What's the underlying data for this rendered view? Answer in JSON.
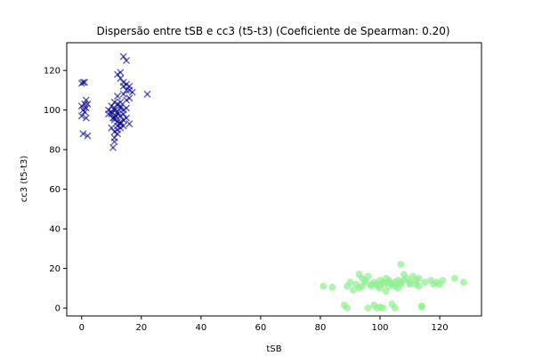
{
  "chart_data": {
    "type": "scatter",
    "title": "Dispersão entre tSB e cc3 (t5-t3) (Coeficiente de Spearman: 0.20)",
    "xlabel": "tSB",
    "ylabel": "cc3 (t5-t3)",
    "xlim": [
      -5,
      134
    ],
    "ylim": [
      -4,
      134
    ],
    "xticks": [
      0,
      20,
      40,
      60,
      80,
      100,
      120
    ],
    "yticks": [
      0,
      20,
      40,
      60,
      80,
      100,
      120
    ],
    "grid": false,
    "series": [
      {
        "marker": "x",
        "color": "#00008b",
        "points": [
          [
            0.5,
            114
          ],
          [
            1,
            114
          ],
          [
            0,
            113.5
          ],
          [
            1.5,
            101
          ],
          [
            0.5,
            100
          ],
          [
            1.5,
            105
          ],
          [
            2,
            103
          ],
          [
            0,
            97
          ],
          [
            1,
            99
          ],
          [
            1.5,
            96
          ],
          [
            0.5,
            88
          ],
          [
            2,
            87
          ],
          [
            0,
            102
          ],
          [
            1,
            103
          ],
          [
            9,
            100
          ],
          [
            10,
            102
          ],
          [
            11,
            96
          ],
          [
            12,
            99
          ],
          [
            13,
            101
          ],
          [
            12,
            98
          ],
          [
            11,
            104
          ],
          [
            13,
            97
          ],
          [
            14,
            100
          ],
          [
            12,
            103
          ],
          [
            11,
            95
          ],
          [
            13,
            93
          ],
          [
            12,
            90
          ],
          [
            11,
            89
          ],
          [
            12,
            88
          ],
          [
            10,
            91
          ],
          [
            11,
            86
          ],
          [
            10.5,
            81
          ],
          [
            11,
            84
          ],
          [
            12,
            92
          ],
          [
            13,
            94
          ],
          [
            14,
            98
          ],
          [
            15,
            101
          ],
          [
            15,
            96
          ],
          [
            14,
            92
          ],
          [
            16,
            93
          ],
          [
            15,
            105
          ],
          [
            14,
            108
          ],
          [
            15,
            110
          ],
          [
            16,
            112
          ],
          [
            14,
            114
          ],
          [
            13,
            119
          ],
          [
            12,
            118
          ],
          [
            13,
            116
          ],
          [
            14,
            127
          ],
          [
            15,
            125
          ],
          [
            16,
            110
          ],
          [
            17,
            109
          ],
          [
            13,
            104
          ],
          [
            12,
            107
          ],
          [
            11,
            101
          ],
          [
            10,
            99
          ],
          [
            9,
            98
          ],
          [
            10.5,
            96
          ],
          [
            11.5,
            97
          ],
          [
            13,
            102
          ],
          [
            14,
            95
          ],
          [
            16,
            106
          ],
          [
            15,
            113
          ],
          [
            14,
            112
          ],
          [
            22,
            108
          ],
          [
            12,
            94
          ],
          [
            13,
            91
          ],
          [
            10,
            98
          ],
          [
            11,
            100
          ]
        ]
      },
      {
        "marker": "o",
        "color": "#90ee90",
        "points": [
          [
            81,
            11
          ],
          [
            84,
            10.5
          ],
          [
            88,
            1.5
          ],
          [
            89,
            0
          ],
          [
            89,
            11
          ],
          [
            90,
            13
          ],
          [
            91,
            9
          ],
          [
            92,
            12
          ],
          [
            93,
            10
          ],
          [
            93,
            17
          ],
          [
            94,
            15
          ],
          [
            95,
            13
          ],
          [
            96,
            16
          ],
          [
            97,
            11
          ],
          [
            97,
            12
          ],
          [
            98,
            13
          ],
          [
            98,
            1.5
          ],
          [
            99,
            0
          ],
          [
            99,
            11
          ],
          [
            100,
            14
          ],
          [
            100,
            10
          ],
          [
            101,
            12
          ],
          [
            101,
            13
          ],
          [
            102,
            15
          ],
          [
            102,
            8.5
          ],
          [
            103,
            11
          ],
          [
            103,
            14
          ],
          [
            104,
            2
          ],
          [
            104,
            12
          ],
          [
            105,
            13
          ],
          [
            105,
            11
          ],
          [
            105,
            0
          ],
          [
            106,
            14
          ],
          [
            106,
            10
          ],
          [
            107,
            12
          ],
          [
            107,
            13
          ],
          [
            107,
            22
          ],
          [
            108,
            17
          ],
          [
            108,
            14
          ],
          [
            109,
            15
          ],
          [
            110,
            12
          ],
          [
            110,
            13
          ],
          [
            111,
            16
          ],
          [
            112,
            12
          ],
          [
            112,
            14
          ],
          [
            113,
            11
          ],
          [
            113,
            15
          ],
          [
            114,
            1
          ],
          [
            114,
            0.5
          ],
          [
            115,
            13
          ],
          [
            117,
            14
          ],
          [
            118,
            12
          ],
          [
            119,
            13
          ],
          [
            120,
            12
          ],
          [
            121,
            14
          ],
          [
            125,
            15
          ],
          [
            128,
            13
          ],
          [
            96,
            0
          ],
          [
            100,
            0.5
          ],
          [
            94,
            11
          ],
          [
            95,
            14
          ],
          [
            99,
            12
          ],
          [
            101,
            0
          ],
          [
            103,
            13
          ]
        ]
      }
    ]
  }
}
